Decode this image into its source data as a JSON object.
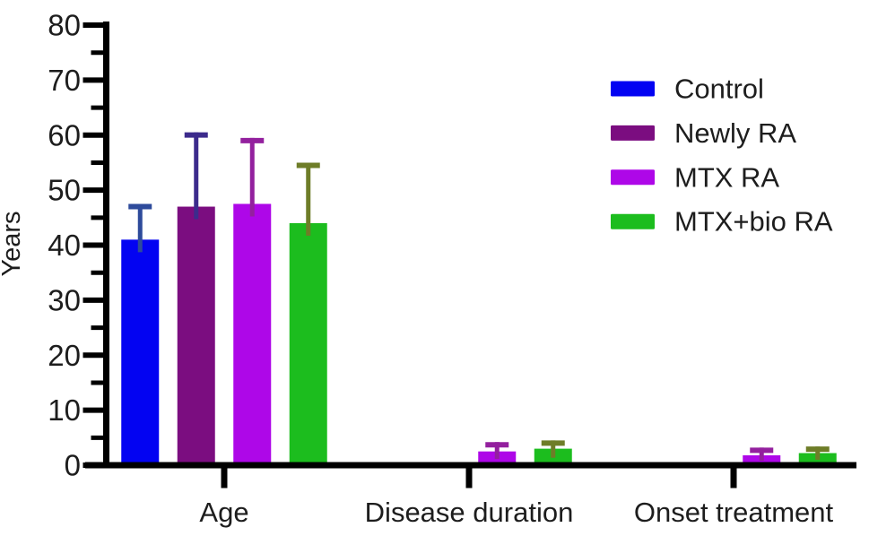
{
  "figure": {
    "background_color": "#ffffff",
    "text_color": "#1d1d1d",
    "axis_color": "#000000"
  },
  "chart_data": {
    "type": "bar",
    "title": "",
    "xlabel": "",
    "ylabel": "Years",
    "ylim": [
      0,
      80
    ],
    "y_major_tick_step": 10,
    "y_minor_tick_step": 5,
    "y_tick_labels": [
      "0",
      "10",
      "20",
      "30",
      "40",
      "50",
      "60",
      "70",
      "80"
    ],
    "grid": false,
    "legend_position": "top-right",
    "error_bar_style": "upper SD whisker with cap",
    "categories": [
      "Age",
      "Disease duration",
      "Onset treatment"
    ],
    "series": [
      {
        "name": "Control",
        "color": "#0303F2",
        "error_color": "#2E4B9B",
        "values": [
          41,
          0,
          0
        ],
        "errors_up": [
          6.5,
          0,
          0
        ]
      },
      {
        "name": "Newly RA",
        "color": "#7B0D80",
        "error_color": "#3C2B8C",
        "values": [
          47,
          0,
          0
        ],
        "errors_up": [
          13.5,
          0,
          0
        ]
      },
      {
        "name": "MTX RA",
        "color": "#AE07E8",
        "error_color": "#93209E",
        "values": [
          47.5,
          2.5,
          1.8
        ],
        "errors_up": [
          12,
          1.7,
          1.4
        ]
      },
      {
        "name": "MTX+bio RA",
        "color": "#1CBD1E",
        "error_color": "#6E7D28",
        "values": [
          44,
          3,
          2.2
        ],
        "errors_up": [
          11,
          1.5,
          1.2
        ]
      }
    ]
  }
}
